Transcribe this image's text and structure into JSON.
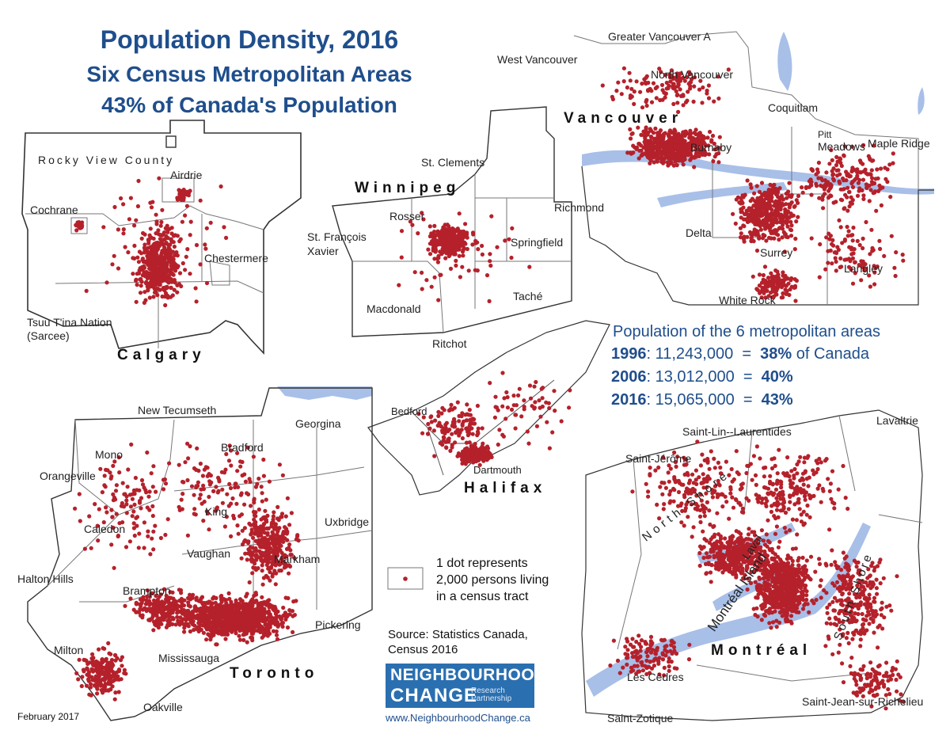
{
  "title": {
    "line1": "Population Density, 2016",
    "line2": "Six Census Metropolitan Areas",
    "line3": "43% of Canada's Population"
  },
  "colors": {
    "dot": "#b5212b",
    "water": "#a8bfe8",
    "boundary": "#888888",
    "title": "#1f4e8c"
  },
  "cities": {
    "calgary": {
      "name": "Calgary",
      "places": [
        "Rocky View County",
        "Airdrie",
        "Cochrane",
        "Chestermere",
        "Tsuu T'ina Nation",
        "(Sarcee)"
      ]
    },
    "winnipeg": {
      "name": "Winnipeg",
      "places": [
        "St. Clements",
        "Rosser",
        "St. François",
        "Xavier",
        "Springfield",
        "Macdonald",
        "Taché",
        "Ritchot"
      ]
    },
    "vancouver": {
      "name": "Vancouver",
      "places": [
        "Greater Vancouver A",
        "West Vancouver",
        "North Vancouver",
        "Coquitlam",
        "Burnaby",
        "Pitt",
        "Meadows",
        "Maple Ridge",
        "Richmond",
        "Delta",
        "Surrey",
        "Langley",
        "White Rock"
      ]
    },
    "toronto": {
      "name": "Toronto",
      "places": [
        "New Tecumseth",
        "Georgina",
        "Mono",
        "Bradford",
        "Orangeville",
        "King",
        "Uxbridge",
        "Caledon",
        "Vaughan",
        "Markham",
        "Halton Hills",
        "Brampton",
        "Pickering",
        "Milton",
        "Mississauga",
        "Oakville"
      ]
    },
    "halifax": {
      "name": "Halifax",
      "places": [
        "Bedford",
        "Dartmouth"
      ]
    },
    "montreal": {
      "name": "Montréal",
      "places": [
        "Lavaltrie",
        "Saint-Lin--Laurentides",
        "Saint-Jérôme",
        "North Shore",
        "Laval",
        "Montréal Island",
        "South Shore",
        "Les Cèdres",
        "Saint-Jean-sur-Richelieu",
        "Saint-Zotique"
      ]
    }
  },
  "stats": {
    "heading": "Population of the 6 metropolitan areas",
    "rows": [
      {
        "year": "1996",
        "value": ": 11,243,000  =  ",
        "pct": "38%",
        "suffix": " of Canada"
      },
      {
        "year": "2006",
        "value": ": 13,012,000  =  ",
        "pct": "40%",
        "suffix": ""
      },
      {
        "year": "2016",
        "value": ": 15,065,000  =  ",
        "pct": "43%",
        "suffix": ""
      }
    ]
  },
  "legend": {
    "line1": "1 dot represents",
    "line2": "2,000 persons living",
    "line3": "in a census tract"
  },
  "source": {
    "line1": "Source: Statistics Canada,",
    "line2": "Census 2016"
  },
  "logo": {
    "line1": "NEIGHBOURHOOD",
    "line2": "CHANGE",
    "line3": "Research\nPartnership"
  },
  "url": "www.NeighbourhoodChange.ca",
  "date": "February 2017"
}
